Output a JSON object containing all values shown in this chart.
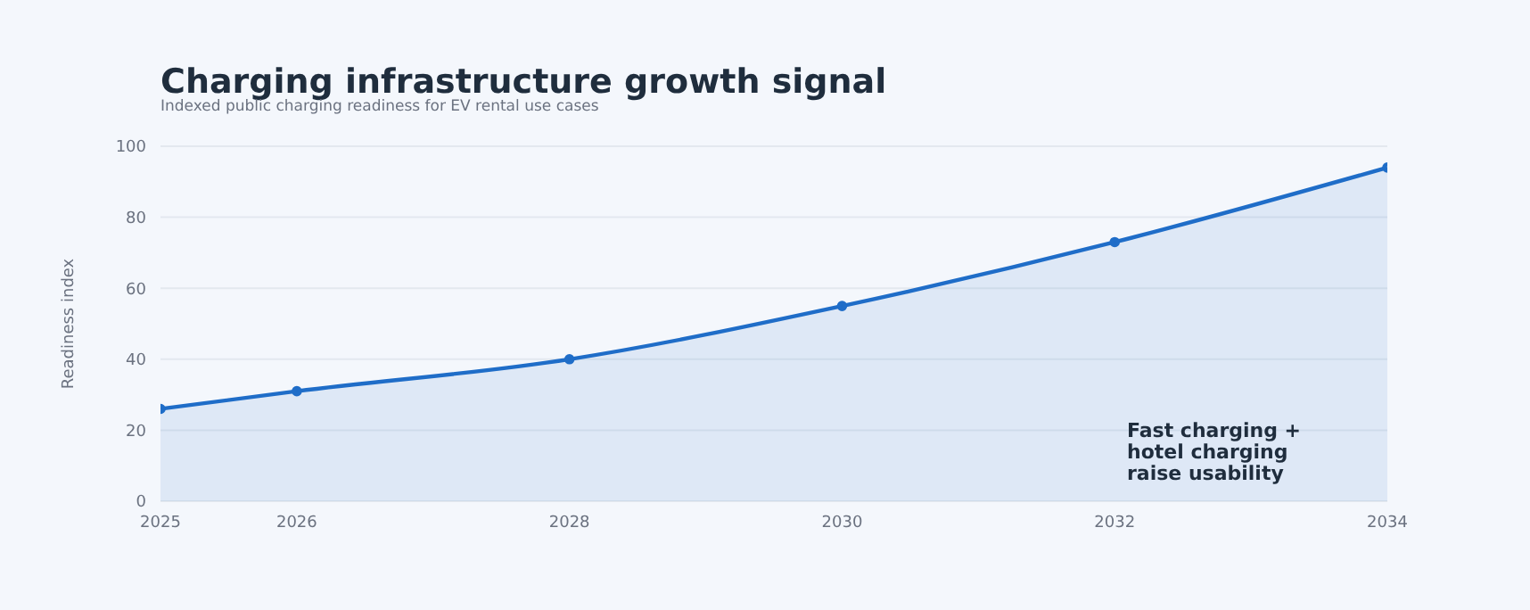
{
  "chart_data": {
    "type": "area",
    "title": "Charging infrastructure growth signal",
    "subtitle": "Indexed public charging readiness for EV rental use cases",
    "ylabel": "Readiness index",
    "x": [
      2025,
      2026,
      2028,
      2030,
      2032,
      2034
    ],
    "series": [
      {
        "color": "#1f6dc8",
        "values": [
          26,
          31,
          40,
          55,
          73,
          94
        ]
      }
    ],
    "xlim": [
      2025,
      2034
    ],
    "xticks": [
      2025,
      2026,
      2028,
      2030,
      2032,
      2034
    ],
    "ylim": [
      0,
      100
    ],
    "yticks": [
      0,
      20,
      40,
      60,
      80,
      100
    ],
    "grid": "y",
    "marker": "circle",
    "line_style": "solid",
    "annotations": [
      "Fast charging + hotel charging raise usability"
    ]
  }
}
